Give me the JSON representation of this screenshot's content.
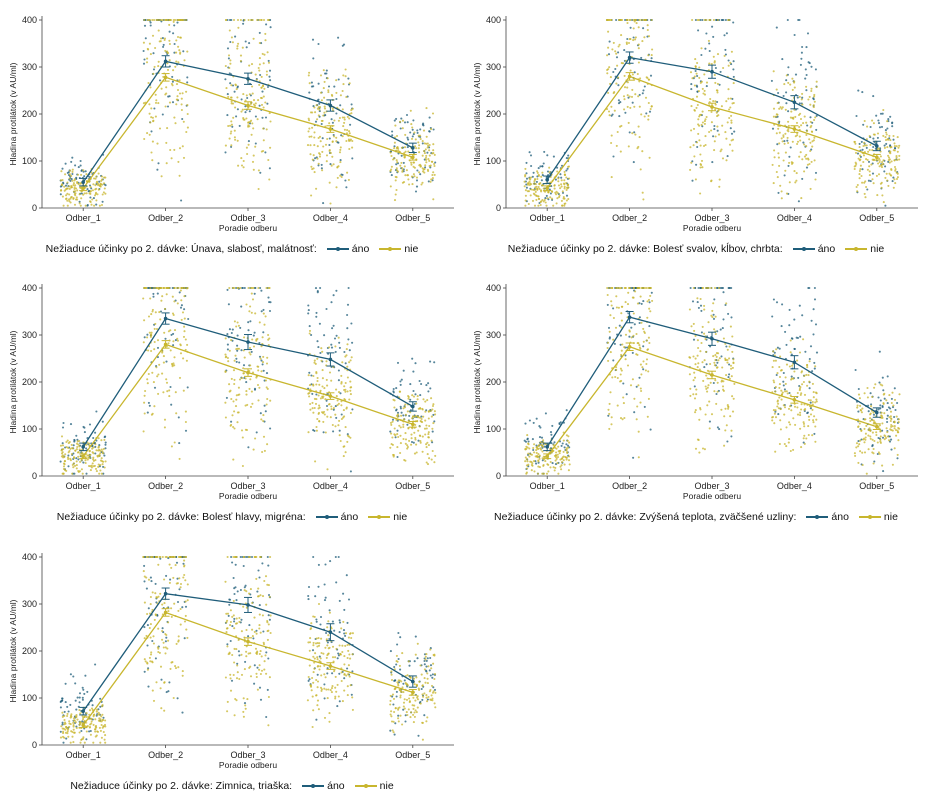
{
  "colors": {
    "ano": "#1f5d7a",
    "nie": "#c8b62e",
    "axis": "#444444"
  },
  "chart_data": [
    {
      "type": "line",
      "categories": [
        "Odber_1",
        "Odber_2",
        "Odber_3",
        "Odber_4",
        "Odber_5"
      ],
      "xlabel": "Poradie odberu",
      "ylabel": "Hladina protilátok (v AU/ml)",
      "ylim": [
        0,
        400
      ],
      "yticks": [
        0,
        100,
        200,
        300,
        400
      ],
      "legend_title": "Nežiaduce účinky po 2. dávke: Únava, slabosť, malátnosť:",
      "series": [
        {
          "name": "áno",
          "values": [
            55,
            312,
            275,
            218,
            128
          ],
          "err": [
            8,
            12,
            12,
            12,
            10
          ]
        },
        {
          "name": "nie",
          "values": [
            42,
            278,
            218,
            168,
            108
          ],
          "err": [
            5,
            8,
            8,
            7,
            6
          ]
        }
      ]
    },
    {
      "type": "line",
      "categories": [
        "Odber_1",
        "Odber_2",
        "Odber_3",
        "Odber_4",
        "Odber_5"
      ],
      "xlabel": "Poradie odberu",
      "ylabel": "Hladina protilátok (v AU/ml)",
      "ylim": [
        0,
        400
      ],
      "yticks": [
        0,
        100,
        200,
        300,
        400
      ],
      "legend_title": "Nežiaduce účinky po 2. dávke: Bolesť svalov, kĺbov, chrbta:",
      "series": [
        {
          "name": "áno",
          "values": [
            60,
            320,
            290,
            225,
            132
          ],
          "err": [
            8,
            12,
            14,
            14,
            10
          ]
        },
        {
          "name": "nie",
          "values": [
            42,
            280,
            215,
            168,
            108
          ],
          "err": [
            5,
            8,
            8,
            7,
            6
          ]
        }
      ]
    },
    {
      "type": "line",
      "categories": [
        "Odber_1",
        "Odber_2",
        "Odber_3",
        "Odber_4",
        "Odber_5"
      ],
      "xlabel": "Poradie odberu",
      "ylabel": "Hladina protilátok (v AU/ml)",
      "ylim": [
        0,
        400
      ],
      "yticks": [
        0,
        100,
        200,
        300,
        400
      ],
      "legend_title": "Nežiaduce účinky po 2. dávke: Bolesť hlavy, migréna:",
      "series": [
        {
          "name": "áno",
          "values": [
            62,
            335,
            285,
            248,
            148
          ],
          "err": [
            8,
            12,
            16,
            14,
            10
          ]
        },
        {
          "name": "nie",
          "values": [
            42,
            280,
            220,
            170,
            110
          ],
          "err": [
            5,
            8,
            8,
            7,
            6
          ]
        }
      ]
    },
    {
      "type": "line",
      "categories": [
        "Odber_1",
        "Odber_2",
        "Odber_3",
        "Odber_4",
        "Odber_5"
      ],
      "xlabel": "Poradie odberu",
      "ylabel": "Hladina protilátok (v AU/ml)",
      "ylim": [
        0,
        400
      ],
      "yticks": [
        0,
        100,
        200,
        300,
        400
      ],
      "legend_title": "Nežiaduce účinky po 2. dávke: Zvýšená teplota, zväčšené uzliny:",
      "series": [
        {
          "name": "áno",
          "values": [
            62,
            338,
            292,
            242,
            135
          ],
          "err": [
            8,
            12,
            14,
            14,
            10
          ]
        },
        {
          "name": "nie",
          "values": [
            42,
            275,
            215,
            162,
            105
          ],
          "err": [
            5,
            8,
            8,
            7,
            6
          ]
        }
      ]
    },
    {
      "type": "line",
      "categories": [
        "Odber_1",
        "Odber_2",
        "Odber_3",
        "Odber_4",
        "Odber_5"
      ],
      "xlabel": "Poradie odberu",
      "ylabel": "Hladina protilátok (v AU/ml)",
      "ylim": [
        0,
        400
      ],
      "yticks": [
        0,
        100,
        200,
        300,
        400
      ],
      "legend_title": "Nežiaduce účinky po 2. dávke: Zimnica, triaška:",
      "series": [
        {
          "name": "áno",
          "values": [
            72,
            322,
            298,
            240,
            135
          ],
          "err": [
            8,
            12,
            16,
            18,
            12
          ]
        },
        {
          "name": "nie",
          "values": [
            42,
            282,
            220,
            168,
            112
          ],
          "err": [
            5,
            8,
            8,
            7,
            6
          ]
        }
      ]
    }
  ]
}
